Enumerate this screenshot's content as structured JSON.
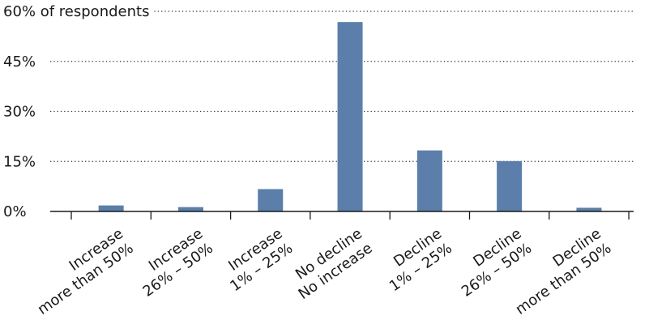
{
  "chart_data": {
    "type": "bar",
    "ylabel_suffix": " of respondents",
    "categories": [
      [
        "Increase",
        "more than 50%"
      ],
      [
        "Increase",
        "26% – 50%"
      ],
      [
        "Increase",
        "1% – 25%"
      ],
      [
        "No decline",
        "No increase"
      ],
      [
        "Decline",
        "1% – 25%"
      ],
      [
        "Decline",
        "26% – 50%"
      ],
      [
        "Decline",
        "more than 50%"
      ]
    ],
    "values": [
      1.8,
      1.3,
      6.7,
      56.8,
      18.3,
      15.1,
      1.1
    ],
    "ylim": [
      0,
      60
    ],
    "yticks": [
      0,
      15,
      30,
      45,
      60
    ],
    "ytick_labels": [
      "0%",
      "15%",
      "30%",
      "45%",
      "60% of respondents"
    ],
    "grid": true,
    "bar_color": "#5b7faa"
  }
}
